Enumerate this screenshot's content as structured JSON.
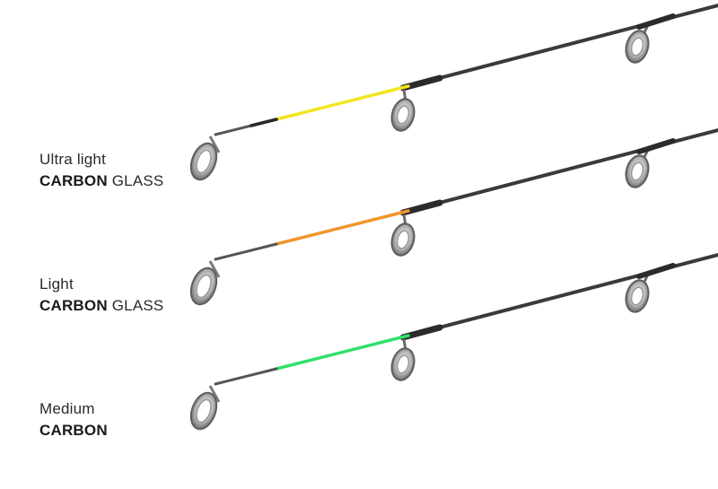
{
  "tips": [
    {
      "name": "Ultra light",
      "material_bold": "CARBON",
      "material_light": "GLASS",
      "tip_color": "#f2e51c"
    },
    {
      "name": "Light",
      "material_bold": "CARBON",
      "material_light": "GLASS",
      "tip_color": "#f0962c"
    },
    {
      "name": "Medium",
      "material_bold": "CARBON",
      "material_light": "",
      "tip_color": "#2fe06a"
    }
  ],
  "colors": {
    "blank": "#3a3a3a",
    "tip_end": "#555555",
    "guide_ring": "#8a8a8a",
    "guide_insert": "#cfcfcf"
  }
}
